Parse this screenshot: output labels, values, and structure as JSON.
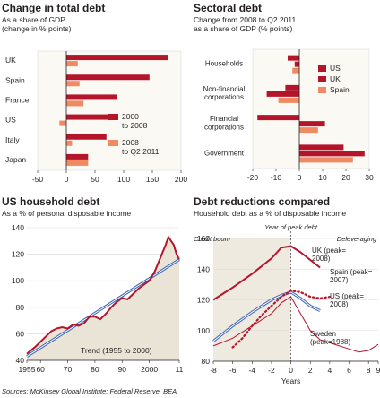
{
  "colors": {
    "dark_red": "#b5152b",
    "orange": "#ef8a62",
    "trend_blue": "#3a62b4",
    "shade": "#eae4d7",
    "axis": "#231f20",
    "grid": "#d9d9d9"
  },
  "chart_data": [
    {
      "type": "bar",
      "orientation": "horizontal",
      "title": "Change in total debt",
      "subtitle": "As a share of GDP\n(change in % points)",
      "categories": [
        "UK",
        "Spain",
        "France",
        "US",
        "Italy",
        "Japan"
      ],
      "series": [
        {
          "name": "2000 to 2008",
          "values": [
            177,
            145,
            88,
            75,
            70,
            38
          ]
        },
        {
          "name": "2008 to Q2 2011",
          "values": [
            20,
            23,
            30,
            -12,
            10,
            38
          ]
        }
      ],
      "xlim": [
        -50,
        200
      ],
      "xticks": [
        "-50",
        "0",
        "50",
        "100",
        "150",
        "200"
      ],
      "legend": [
        {
          "label": "2000\nto 2008",
          "series": 0
        },
        {
          "label": "2008\nto Q2 2011",
          "series": 1
        }
      ]
    },
    {
      "type": "bar",
      "orientation": "horizontal",
      "title": "Sectoral debt",
      "subtitle": "Change from 2008 to Q2 2011\nas a share of GDP (% points)",
      "categories": [
        "Households",
        "Non-financial\ncorporations",
        "Financial\ncorporations",
        "Government"
      ],
      "series": [
        {
          "name": "US",
          "values": [
            -5,
            -6,
            -18,
            19
          ]
        },
        {
          "name": "UK",
          "values": [
            -2,
            -14,
            11,
            28
          ]
        },
        {
          "name": "Spain",
          "values": [
            -3,
            -9,
            8,
            23
          ]
        }
      ],
      "xlim": [
        -20,
        30
      ],
      "xticks": [
        "-20",
        "-10",
        "0",
        "10",
        "20",
        "30"
      ]
    },
    {
      "type": "line",
      "title": "US household debt",
      "subtitle": "As a % of personal disposable income",
      "xlim": [
        1955,
        2011
      ],
      "ylim": [
        40,
        140
      ],
      "xticks": [
        "1955",
        "60",
        "70",
        "80",
        "90",
        "2000",
        "11"
      ],
      "yticks": [
        "40",
        "60",
        "80",
        "100",
        "120",
        "140"
      ],
      "series": [
        {
          "name": "Household debt",
          "x": [
            1955,
            1958,
            1961,
            1964,
            1966,
            1968,
            1970,
            1972,
            1974,
            1976,
            1978,
            1980,
            1982,
            1984,
            1986,
            1988,
            1990,
            1992,
            1994,
            1996,
            1998,
            2000,
            2002,
            2004,
            2006,
            2007,
            2008,
            2009,
            2010,
            2011
          ],
          "y": [
            45,
            50,
            56,
            62,
            64,
            65,
            64,
            67,
            66,
            68,
            73,
            73,
            71,
            75,
            80,
            84,
            87,
            86,
            90,
            94,
            97,
            100,
            107,
            117,
            127,
            133,
            130,
            127,
            120,
            116
          ]
        },
        {
          "name": "Trend (1955 to 2000)",
          "x": [
            1955,
            2011
          ],
          "y": [
            43,
            116
          ]
        }
      ],
      "annotations": [
        "Trend (1955 to 2000)"
      ]
    },
    {
      "type": "line",
      "title": "Debt reductions compared",
      "subtitle": "Household debt as a % of disposable income",
      "xlabel": "Years",
      "top_label": "Year of peak debt",
      "xlim": [
        -8,
        9
      ],
      "ylim": [
        80,
        160
      ],
      "xticks": [
        "-8",
        "-6",
        "-4",
        "-2",
        "0",
        "2",
        "4",
        "6",
        "8",
        "9"
      ],
      "yticks": [
        "80",
        "100",
        "120",
        "140",
        "160"
      ],
      "annotations": [
        "Credit boom",
        "Deleveraging"
      ],
      "series": [
        {
          "name": "UK (peak=2008)",
          "x": [
            -8,
            -6,
            -4,
            -2,
            -1,
            0,
            1,
            2,
            3
          ],
          "y": [
            120,
            128,
            137,
            147,
            154,
            155,
            151,
            146,
            141
          ]
        },
        {
          "name": "Spain (peak=2007)",
          "x": [
            -6,
            -5,
            -4,
            -3,
            -2,
            -1,
            0,
            1,
            2,
            3,
            4
          ],
          "y": [
            89,
            95,
            103,
            110,
            116,
            122,
            126,
            125,
            122,
            121,
            122
          ]
        },
        {
          "name": "US (peak=2008)",
          "x": [
            -8,
            -6,
            -4,
            -2,
            -1,
            0,
            1,
            2,
            3
          ],
          "y": [
            93,
            103,
            112,
            120,
            123,
            125,
            121,
            116,
            113
          ]
        },
        {
          "name": "Sweden (peak=1988)",
          "x": [
            -8,
            -6,
            -4,
            -2,
            -1,
            0,
            1,
            2,
            3,
            4,
            5,
            6,
            7,
            8,
            9
          ],
          "y": [
            90,
            95,
            103,
            111,
            118,
            122,
            111,
            100,
            94,
            92,
            90,
            88,
            86,
            87,
            91
          ]
        }
      ],
      "series_labels": {
        "uk": "UK (peak=\n2008)",
        "spain": "Spain (peak=\n2007)",
        "us": "US (peak=\n2008)",
        "sweden": "Sweden\n(peak=1988)"
      }
    }
  ],
  "source": "Sources: McKinsey Global Institute; Federal Reserve, BEA"
}
